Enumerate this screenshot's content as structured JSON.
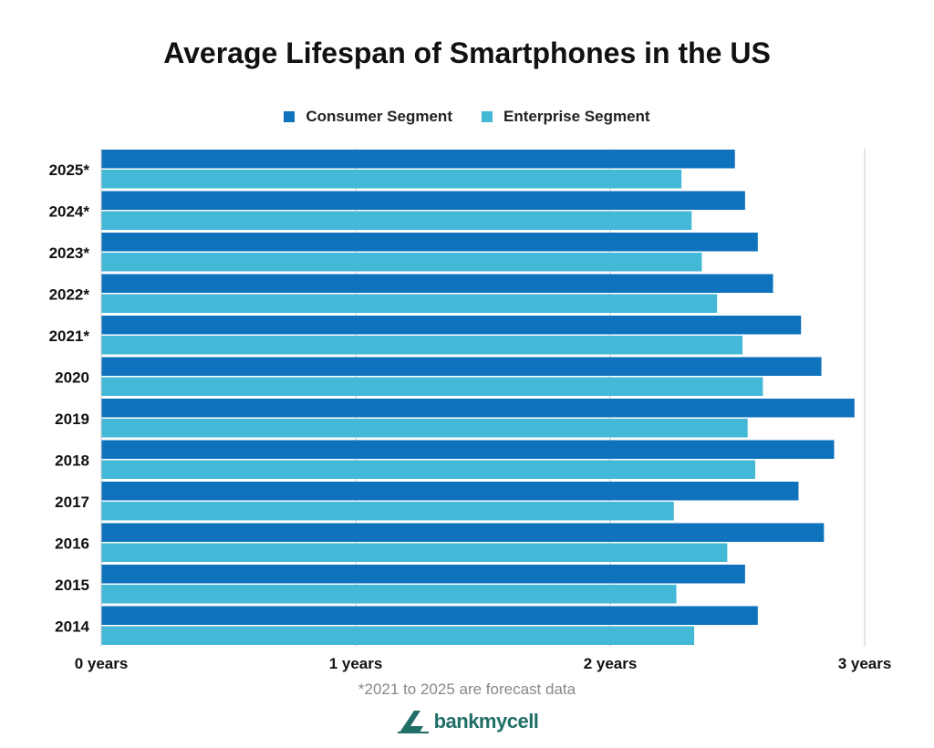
{
  "chart_data": {
    "type": "bar",
    "orientation": "horizontal",
    "title": "Average Lifespan of Smartphones in the US",
    "categories": [
      "2025*",
      "2024*",
      "2023*",
      "2022*",
      "2021*",
      "2020",
      "2019",
      "2018",
      "2017",
      "2016",
      "2015",
      "2014"
    ],
    "series": [
      {
        "name": "Consumer Segment",
        "color": "#0f72bd",
        "values": [
          2.49,
          2.53,
          2.58,
          2.64,
          2.75,
          2.83,
          2.96,
          2.88,
          2.74,
          2.84,
          2.53,
          2.58
        ]
      },
      {
        "name": "Enterprise Segment",
        "color": "#43b8d7",
        "values": [
          2.28,
          2.32,
          2.36,
          2.42,
          2.52,
          2.6,
          2.54,
          2.57,
          2.25,
          2.46,
          2.26,
          2.33
        ]
      }
    ],
    "xlim": [
      0,
      3
    ],
    "xticks": [
      0,
      1,
      2,
      3
    ],
    "xtick_labels": [
      "0 years",
      "1 years",
      "2 years",
      "3 years"
    ],
    "grid": "vertical",
    "legend": "top-center",
    "footnote": "*2021 to 2025 are forecast data"
  },
  "brand": {
    "name": "bankmycell",
    "icon": "bankmycell-logo-icon"
  }
}
